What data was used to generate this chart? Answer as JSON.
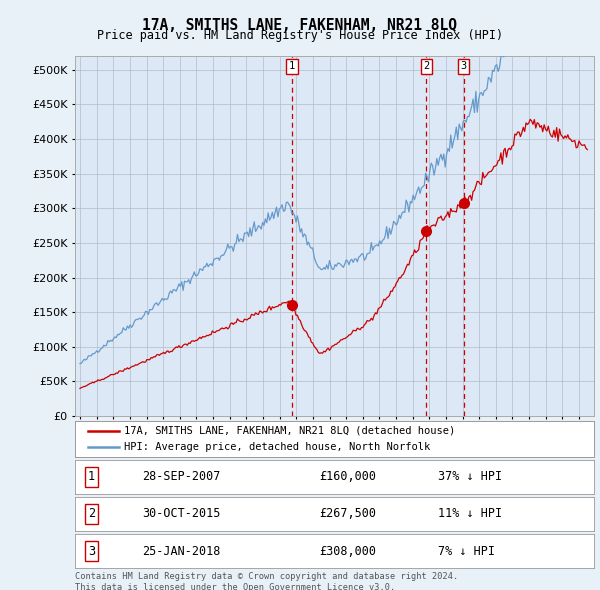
{
  "title": "17A, SMITHS LANE, FAKENHAM, NR21 8LQ",
  "subtitle": "Price paid vs. HM Land Registry's House Price Index (HPI)",
  "background_color": "#e8f0f8",
  "plot_bg_color": "#dce8f5",
  "sale_label_info": [
    {
      "num": "1",
      "date": "28-SEP-2007",
      "price": "£160,000",
      "pct": "37% ↓ HPI"
    },
    {
      "num": "2",
      "date": "30-OCT-2015",
      "price": "£267,500",
      "pct": "11% ↓ HPI"
    },
    {
      "num": "3",
      "date": "25-JAN-2018",
      "price": "£308,000",
      "pct": "7% ↓ HPI"
    }
  ],
  "sale_years_decimal": [
    2007.75,
    2015.83,
    2018.07
  ],
  "sale_prices": [
    160000,
    267500,
    308000
  ],
  "red_line_color": "#cc0000",
  "blue_line_color": "#6699cc",
  "dashed_line_color": "#cc0000",
  "ylim": [
    0,
    520000
  ],
  "yticks": [
    0,
    50000,
    100000,
    150000,
    200000,
    250000,
    300000,
    350000,
    400000,
    450000,
    500000
  ],
  "legend_label_red": "17A, SMITHS LANE, FAKENHAM, NR21 8LQ (detached house)",
  "legend_label_blue": "HPI: Average price, detached house, North Norfolk",
  "footnote": "Contains HM Land Registry data © Crown copyright and database right 2024.\nThis data is licensed under the Open Government Licence v3.0."
}
